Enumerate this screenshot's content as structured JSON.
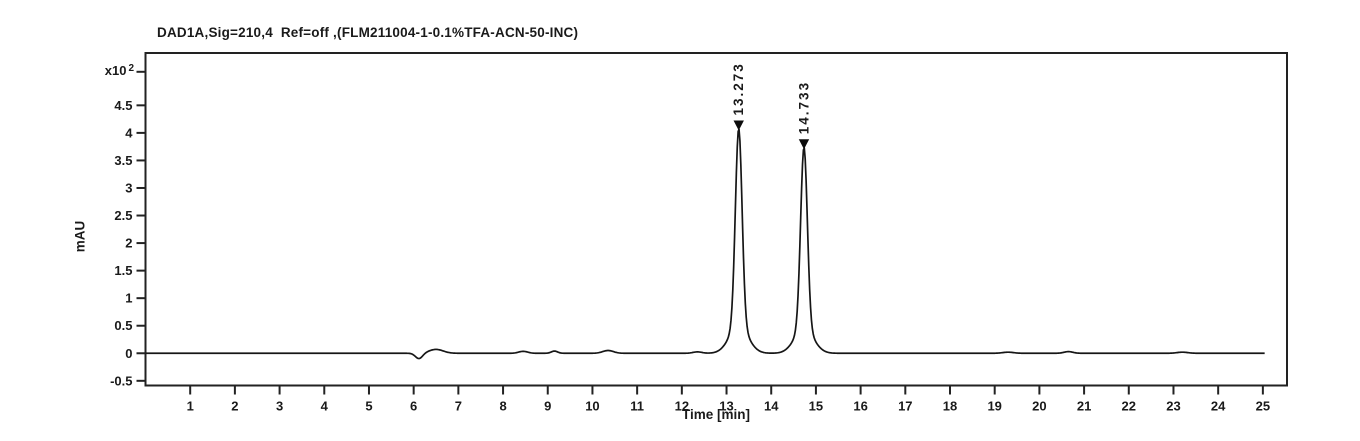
{
  "window": {
    "background": "#ffffff"
  },
  "chart_data": {
    "type": "line",
    "title": "DAD1A,Sig=210,4  Ref=off ,(FLM211004-1-0.1%TFA-ACN-50-INC)",
    "xlabel": "Time [min]",
    "ylabel": "mAU",
    "y_scale_label": {
      "prefix": "x10",
      "exponent": "2"
    },
    "line_color": "#161616",
    "axis_color": "#222222",
    "text_color": "#1a1a1a",
    "marker_color": "#0c0c0c",
    "xlim": [
      0,
      25.54
    ],
    "ylim": [
      -0.585,
      5.45
    ],
    "time_range": [
      0,
      25.05
    ],
    "grid": false,
    "legend": false,
    "x_ticks": [
      1,
      2,
      3,
      4,
      5,
      6,
      7,
      8,
      9,
      10,
      11,
      12,
      13,
      14,
      15,
      16,
      17,
      18,
      19,
      20,
      21,
      22,
      23,
      24,
      25
    ],
    "x_tick_labels": [
      "1",
      "2",
      "3",
      "4",
      "5",
      "6",
      "7",
      "8",
      "9",
      "10",
      "11",
      "12",
      "13",
      "14",
      "15",
      "16",
      "17",
      "18",
      "19",
      "20",
      "21",
      "22",
      "23",
      "24",
      "25"
    ],
    "y_ticks": [
      -0.5,
      0,
      0.5,
      1,
      1.5,
      2,
      2.5,
      3,
      3.5,
      4,
      4.5
    ],
    "y_tick_labels": [
      "-0.5",
      "0",
      "0.5",
      "1",
      "1.5",
      "2",
      "2.5",
      "3",
      "3.5",
      "4",
      "4.5"
    ],
    "peaks": [
      {
        "retention_time": 13.273,
        "label": "13.273",
        "height": 4.08,
        "sigma": 0.075
      },
      {
        "retention_time": 14.733,
        "label": "14.733",
        "height": 3.74,
        "sigma": 0.075
      }
    ],
    "baseline_features": [
      {
        "center": 6.12,
        "amplitude": -0.1,
        "sigma": 0.08
      },
      {
        "center": 6.5,
        "amplitude": 0.07,
        "sigma": 0.16
      },
      {
        "center": 8.45,
        "amplitude": 0.035,
        "sigma": 0.1
      },
      {
        "center": 9.15,
        "amplitude": 0.04,
        "sigma": 0.07
      },
      {
        "center": 10.35,
        "amplitude": 0.05,
        "sigma": 0.12
      },
      {
        "center": 12.35,
        "amplitude": 0.025,
        "sigma": 0.1
      },
      {
        "center": 19.3,
        "amplitude": 0.02,
        "sigma": 0.12
      },
      {
        "center": 20.65,
        "amplitude": 0.03,
        "sigma": 0.1
      },
      {
        "center": 23.2,
        "amplitude": 0.02,
        "sigma": 0.12
      }
    ]
  }
}
